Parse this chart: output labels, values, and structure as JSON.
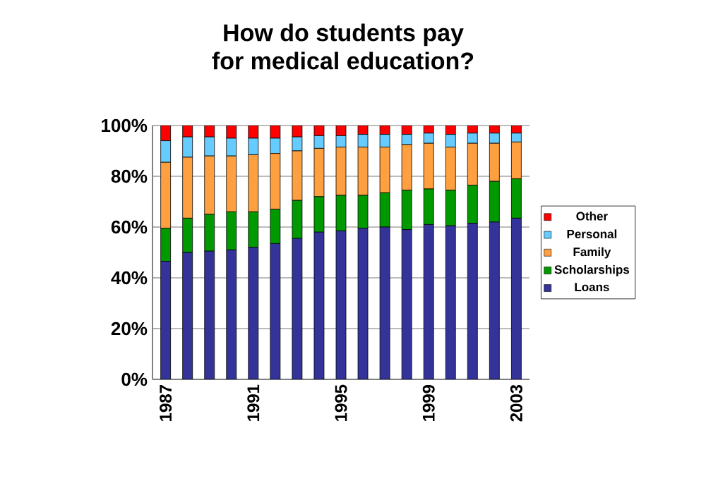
{
  "chart_data": {
    "type": "bar",
    "title": "How do students pay\nfor medical education?",
    "categories": [
      "1987",
      null,
      null,
      null,
      "1991",
      null,
      null,
      null,
      "1995",
      null,
      null,
      null,
      "1999",
      null,
      null,
      null,
      "2003"
    ],
    "stacked": true,
    "series": [
      {
        "name": "Loans",
        "color": "#333399",
        "values": [
          46.5,
          50,
          50.5,
          51,
          52,
          53.5,
          55.5,
          58,
          58.5,
          59.5,
          60,
          59,
          61,
          60.5,
          61.5,
          62,
          63.5
        ]
      },
      {
        "name": "Scholarships",
        "color": "#009900",
        "values": [
          13,
          13.5,
          14.5,
          15,
          14,
          13.5,
          15,
          14,
          14,
          13,
          13.5,
          15.5,
          14,
          14,
          15,
          16,
          15.5
        ]
      },
      {
        "name": "Family",
        "color": "#ffa040",
        "values": [
          26,
          24,
          23,
          22,
          22.5,
          22,
          19.5,
          19,
          19,
          19,
          18,
          18,
          18,
          17,
          16.5,
          15,
          14.5
        ]
      },
      {
        "name": "Personal",
        "color": "#66ccff",
        "values": [
          8.5,
          8,
          7.5,
          7,
          6.5,
          6,
          5.5,
          5,
          4.5,
          5,
          5,
          4,
          4,
          5,
          4,
          4,
          3.5
        ]
      },
      {
        "name": "Other",
        "color": "#ff0000",
        "values": [
          6,
          4.5,
          4.5,
          5,
          5,
          5,
          4.5,
          4,
          4,
          3.5,
          3.5,
          3.5,
          3,
          3.5,
          3,
          3,
          3
        ]
      }
    ],
    "ylim": [
      0,
      100
    ],
    "yticks": [
      {
        "value": 0,
        "label": "0%"
      },
      {
        "value": 20,
        "label": "20%"
      },
      {
        "value": 40,
        "label": "40%"
      },
      {
        "value": 60,
        "label": "60%"
      },
      {
        "value": 80,
        "label": "80%"
      },
      {
        "value": 100,
        "label": "100%"
      }
    ],
    "grid": "y",
    "legend": "right"
  }
}
